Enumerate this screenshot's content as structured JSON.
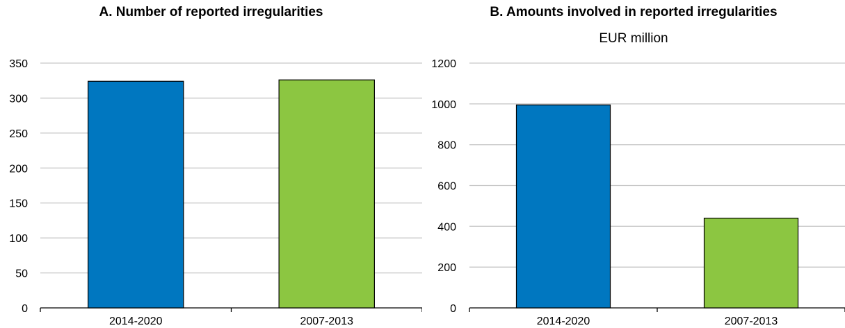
{
  "chart_data": [
    {
      "type": "bar",
      "title": "A. Number of reported irregularities",
      "subtitle": "",
      "categories": [
        "2014-2020",
        "2007-2013"
      ],
      "values": [
        324,
        326
      ],
      "colors": [
        "#0077C0",
        "#8CC641"
      ],
      "ylim": [
        0,
        350
      ],
      "yticks": [
        0,
        50,
        100,
        150,
        200,
        250,
        300,
        350
      ],
      "xlabel": "",
      "ylabel": "",
      "grid": true
    },
    {
      "type": "bar",
      "title": "B. Amounts involved in reported irregularities",
      "subtitle": "EUR million",
      "categories": [
        "2014-2020",
        "2007-2013"
      ],
      "values": [
        995,
        440
      ],
      "colors": [
        "#0077C0",
        "#8CC641"
      ],
      "ylim": [
        0,
        1200
      ],
      "yticks": [
        0,
        200,
        400,
        600,
        800,
        1000,
        1200
      ],
      "xlabel": "",
      "ylabel": "",
      "grid": true
    }
  ]
}
